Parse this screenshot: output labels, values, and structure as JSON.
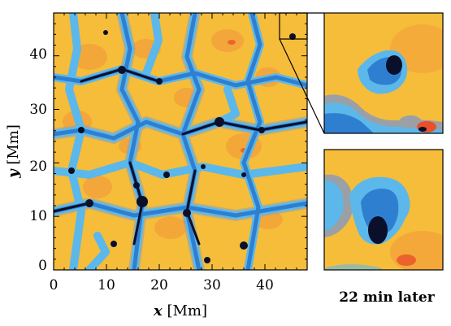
{
  "figure": {
    "x_axis": {
      "title_var": "x",
      "title_unit": " [Mm]",
      "ticks": [
        "0",
        "10",
        "20",
        "30",
        "40"
      ],
      "range": [
        0,
        48
      ]
    },
    "y_axis": {
      "title_var": "y",
      "title_unit": " [Mm]",
      "ticks": [
        "0",
        "10",
        "20",
        "30",
        "40"
      ],
      "range": [
        0,
        48
      ]
    },
    "inset_caption": "22 min later",
    "colors": {
      "granule_yellow": "#f5bd3a",
      "granule_orange": "#f19a3a",
      "hot_red": "#e8502a",
      "gray": "#9aa0a6",
      "light_blue": "#5cb8ea",
      "blue": "#2f7fd0",
      "dark": "#0a0f2a"
    }
  }
}
